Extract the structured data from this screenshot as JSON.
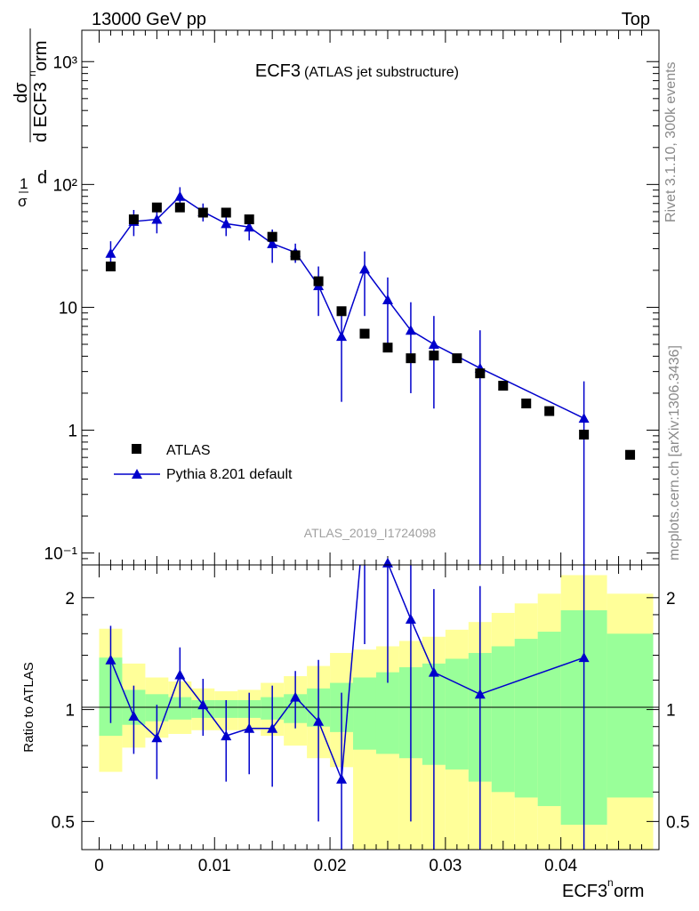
{
  "header": {
    "left": "13000 GeV pp",
    "right": "Top"
  },
  "side_labels": {
    "rivet": "Rivet 3.1.10,  300k events",
    "mcplots": "mcplots.cern.ch [arXiv:1306.3436]"
  },
  "watermark": "ATLAS_2019_I1724098",
  "colors": {
    "data": "#000000",
    "mc": "#0000cc",
    "band_inner": "#99ff99",
    "band_outer": "#ffff99"
  },
  "chart_data": [
    {
      "type": "scatter",
      "title": "ECF3",
      "subtitle": "(ATLAS jet substructure)",
      "ylabel": "1/σ dσ/d ECF3norm",
      "y_scale": "log",
      "ylim": [
        0.08,
        1800
      ],
      "xlim": [
        -0.0015,
        0.0485
      ],
      "y_ticks": [
        {
          "v": 0.1,
          "label": "10⁻¹"
        },
        {
          "v": 1,
          "label": "1"
        },
        {
          "v": 10,
          "label": "10"
        },
        {
          "v": 100,
          "label": "10²"
        },
        {
          "v": 1000,
          "label": "10³"
        }
      ],
      "legend_position": "bottom-left",
      "series": [
        {
          "name": "ATLAS",
          "marker": "square",
          "x": [
            0.001,
            0.003,
            0.005,
            0.007,
            0.009,
            0.011,
            0.013,
            0.015,
            0.017,
            0.019,
            0.021,
            0.023,
            0.025,
            0.027,
            0.029,
            0.031,
            0.033,
            0.035,
            0.037,
            0.039,
            0.042,
            0.046
          ],
          "y": [
            21.5,
            52,
            65,
            65,
            59,
            59,
            52,
            37.5,
            26.5,
            16.3,
            9.3,
            6.1,
            4.7,
            3.85,
            4.05,
            3.85,
            2.9,
            2.3,
            1.65,
            1.43,
            0.92,
            0.63
          ]
        },
        {
          "name": "Pythia 8.201 default",
          "marker": "triangle",
          "x": [
            0.001,
            0.003,
            0.005,
            0.007,
            0.009,
            0.011,
            0.013,
            0.015,
            0.017,
            0.019,
            0.021,
            0.023,
            0.025,
            0.027,
            0.029,
            0.033,
            0.042
          ],
          "y": [
            27.5,
            50,
            52,
            80,
            60,
            48,
            45,
            33,
            28,
            15,
            5.8,
            20.5,
            11.5,
            6.5,
            5.0,
            3.2,
            1.25
          ],
          "err_low": [
            7,
            12,
            12,
            15,
            10,
            10,
            10,
            10,
            5,
            6.5,
            4.1,
            12,
            6.5,
            4.5,
            3.5,
            3.2,
            1.25
          ],
          "err_high": [
            7,
            12,
            12,
            15,
            10,
            10,
            10,
            10,
            5,
            6.5,
            4.1,
            8,
            6,
            4.5,
            3.5,
            3.3,
            1.25
          ]
        }
      ]
    },
    {
      "type": "line",
      "ylabel": "Ratio to ATLAS",
      "xlabel": "ECF3norm",
      "y_scale": "log",
      "ylim": [
        0.42,
        2.45
      ],
      "xlim": [
        -0.0015,
        0.0485
      ],
      "x_ticks": [
        {
          "v": 0,
          "label": "0"
        },
        {
          "v": 0.01,
          "label": "0.01"
        },
        {
          "v": 0.02,
          "label": "0.02"
        },
        {
          "v": 0.03,
          "label": "0.03"
        },
        {
          "v": 0.04,
          "label": "0.04"
        }
      ],
      "y_ticks": [
        {
          "v": 0.5,
          "label": "0.5"
        },
        {
          "v": 1,
          "label": "1"
        },
        {
          "v": 2,
          "label": "2"
        }
      ],
      "bands": {
        "edges": [
          0,
          0.002,
          0.004,
          0.006,
          0.008,
          0.01,
          0.012,
          0.014,
          0.016,
          0.018,
          0.02,
          0.022,
          0.024,
          0.026,
          0.028,
          0.03,
          0.032,
          0.034,
          0.036,
          0.038,
          0.04,
          0.044,
          0.048
        ],
        "outer_low": [
          0.68,
          0.79,
          0.84,
          0.86,
          0.88,
          0.88,
          0.88,
          0.85,
          0.8,
          0.74,
          0.7,
          0.39,
          0.39,
          0.39,
          0.39,
          0.39,
          0.39,
          0.39,
          0.39,
          0.39,
          0.39,
          0.39
        ],
        "outer_high": [
          1.65,
          1.33,
          1.22,
          1.19,
          1.14,
          1.12,
          1.13,
          1.18,
          1.23,
          1.31,
          1.42,
          1.45,
          1.48,
          1.53,
          1.57,
          1.64,
          1.72,
          1.82,
          1.93,
          2.05,
          2.3,
          2.05
        ],
        "inner_low": [
          0.85,
          0.91,
          0.93,
          0.94,
          0.95,
          0.95,
          0.95,
          0.94,
          0.92,
          0.9,
          0.87,
          0.78,
          0.76,
          0.74,
          0.71,
          0.69,
          0.64,
          0.6,
          0.58,
          0.55,
          0.49,
          0.58
        ],
        "inner_high": [
          1.38,
          1.13,
          1.1,
          1.08,
          1.06,
          1.06,
          1.06,
          1.08,
          1.1,
          1.14,
          1.18,
          1.22,
          1.26,
          1.3,
          1.33,
          1.37,
          1.42,
          1.48,
          1.55,
          1.62,
          1.85,
          1.6
        ]
      },
      "series": [
        {
          "name": "Pythia 8.201 default",
          "x": [
            0.001,
            0.003,
            0.005,
            0.007,
            0.009,
            0.011,
            0.013,
            0.015,
            0.017,
            0.019,
            0.021,
            0.023,
            0.025,
            0.027,
            0.029,
            0.033,
            0.042
          ],
          "y": [
            1.36,
            0.96,
            0.84,
            1.24,
            1.03,
            0.85,
            0.89,
            0.89,
            1.08,
            0.93,
            0.65,
            3.4,
            2.48,
            1.75,
            1.26,
            1.1,
            1.38
          ],
          "err_low": [
            0.44,
            0.2,
            0.19,
            0.23,
            0.18,
            0.21,
            0.22,
            0.27,
            0.19,
            0.43,
            0.46,
            1.9,
            1.3,
            1.25,
            1.0,
            1.1,
            1.38
          ],
          "err_high": [
            0.32,
            0.2,
            0.19,
            0.23,
            0.18,
            0.21,
            0.22,
            0.27,
            0.19,
            0.43,
            0.46,
            1.9,
            1.3,
            1.25,
            0.85,
            1.05,
            1.38
          ]
        }
      ]
    }
  ]
}
